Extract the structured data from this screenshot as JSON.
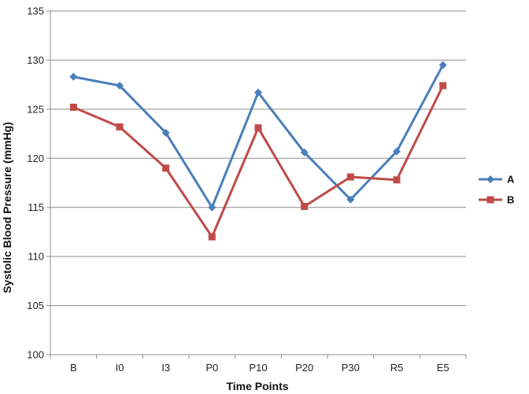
{
  "chart_data": {
    "type": "line",
    "categories": [
      "B",
      "I0",
      "I3",
      "P0",
      "P10",
      "P20",
      "P30",
      "R5",
      "E5"
    ],
    "series": [
      {
        "name": "A",
        "color": "#4a7ebb",
        "marker": "diamond",
        "values": [
          128.3,
          127.4,
          122.6,
          115.0,
          126.7,
          120.6,
          115.8,
          120.7,
          129.5
        ]
      },
      {
        "name": "B",
        "color": "#be4b48",
        "marker": "square",
        "values": [
          125.2,
          123.2,
          119.0,
          112.0,
          123.1,
          115.1,
          118.1,
          117.8,
          127.4
        ]
      }
    ],
    "xlabel": "Time Points",
    "ylabel": "Systolic Blood Pressure (mmHg)",
    "ylim": [
      100,
      135
    ],
    "yticks": [
      100,
      105,
      110,
      115,
      120,
      125,
      130,
      135
    ],
    "grid": "horizontal",
    "legend_position": "right"
  }
}
